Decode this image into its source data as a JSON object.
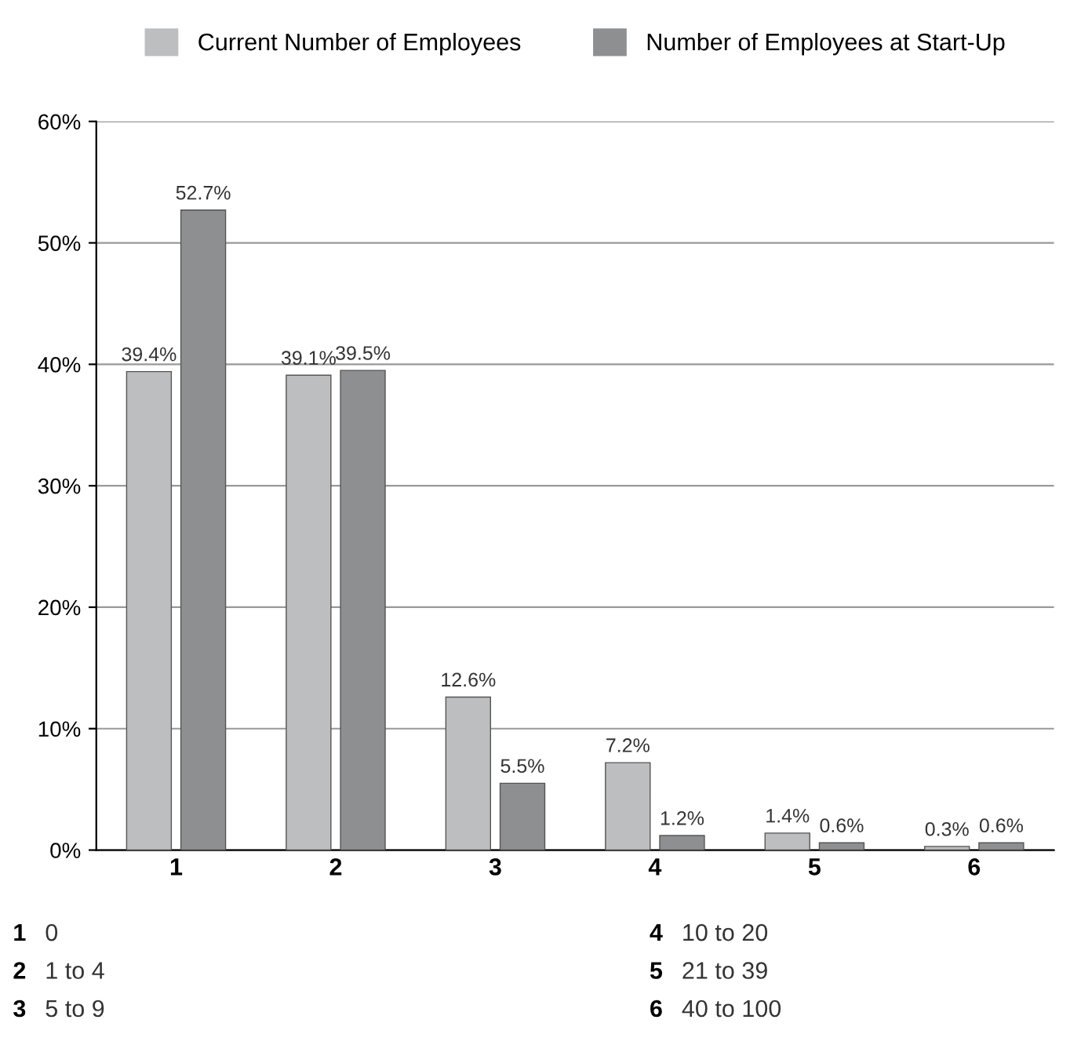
{
  "chart_data": {
    "type": "bar",
    "categories": [
      "1",
      "2",
      "3",
      "4",
      "5",
      "6"
    ],
    "series": [
      {
        "name": "Current Number of Employees",
        "color": "#bdbec0",
        "values": [
          39.4,
          39.1,
          12.6,
          7.2,
          1.4,
          0.3
        ],
        "value_labels": [
          "39.4%",
          "39.1%",
          "12.6%",
          "7.2%",
          "1.4%",
          "0.3%"
        ]
      },
      {
        "name": "Number of Employees at Start-Up",
        "color": "#8e8f91",
        "values": [
          52.7,
          39.5,
          5.5,
          1.2,
          0.6,
          0.6
        ],
        "value_labels": [
          "52.7%",
          "39.5%",
          "5.5%",
          "1.2%",
          "0.6%",
          "0.6%"
        ]
      }
    ],
    "ylim": [
      0,
      60
    ],
    "yticks": [
      {
        "value": 0,
        "label": "0%"
      },
      {
        "value": 10,
        "label": "10%"
      },
      {
        "value": 20,
        "label": "20%"
      },
      {
        "value": 30,
        "label": "30%"
      },
      {
        "value": 40,
        "label": "40%"
      },
      {
        "value": 50,
        "label": "50%"
      },
      {
        "value": 60,
        "label": "60%"
      }
    ],
    "grid": "y",
    "legend": "top",
    "annotations": [
      "1 0",
      "2 1 to 4",
      "3 5 to 9",
      "4 10 to 20",
      "5 21 to 39",
      "6 40 to 100"
    ]
  }
}
